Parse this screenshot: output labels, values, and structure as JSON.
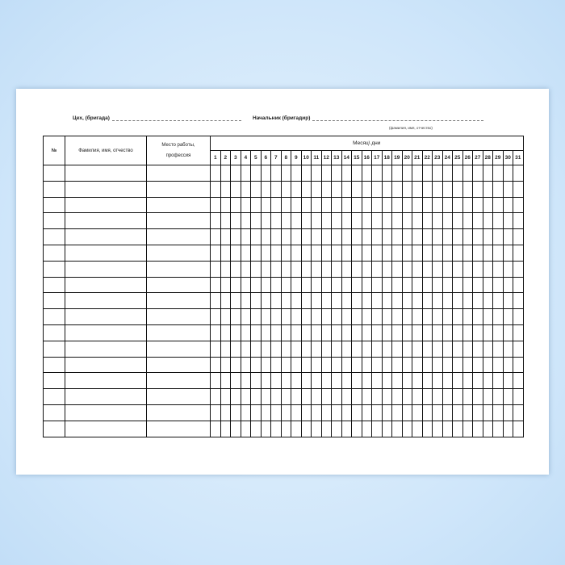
{
  "header": {
    "workshop_label": "Цех, (бригада)",
    "chief_label": "Начальник (бригадир)",
    "chief_note": "(фамилия, имя, отчество)"
  },
  "table": {
    "col_number": "№",
    "col_name": "Фамилия, имя, отчество",
    "col_work": "Место работы, профессия",
    "col_month": "Месяц\\ дни",
    "days": [
      "1",
      "2",
      "3",
      "4",
      "5",
      "6",
      "7",
      "8",
      "9",
      "10",
      "11",
      "12",
      "13",
      "14",
      "15",
      "16",
      "17",
      "18",
      "19",
      "20",
      "21",
      "22",
      "23",
      "24",
      "25",
      "26",
      "27",
      "28",
      "29",
      "30",
      "31"
    ],
    "body_rows": 17
  }
}
